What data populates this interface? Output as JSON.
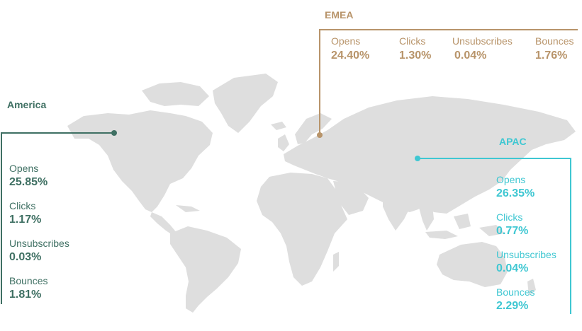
{
  "colors": {
    "america": "#3f7063",
    "emea": "#b8946a",
    "apac": "#3fc7d2",
    "land": "#dedede"
  },
  "regions": {
    "america": {
      "name": "America",
      "metrics": [
        {
          "label": "Opens",
          "value": "25.85%"
        },
        {
          "label": "Clicks",
          "value": "1.17%"
        },
        {
          "label": "Unsubscribes",
          "value": "0.03%"
        },
        {
          "label": "Bounces",
          "value": "1.81%"
        }
      ]
    },
    "emea": {
      "name": "EMEA",
      "metrics": [
        {
          "label": "Opens",
          "value": "24.40%"
        },
        {
          "label": "Clicks",
          "value": "1.30%"
        },
        {
          "label": "Unsubscribes",
          "value": "0.04%"
        },
        {
          "label": "Bounces",
          "value": "1.76%"
        }
      ]
    },
    "apac": {
      "name": "APAC",
      "metrics": [
        {
          "label": "Opens",
          "value": "26.35%"
        },
        {
          "label": "Clicks",
          "value": "0.77%"
        },
        {
          "label": "Unsubscribes",
          "value": "0.04%"
        },
        {
          "label": "Bounces",
          "value": "2.29%"
        }
      ]
    }
  }
}
